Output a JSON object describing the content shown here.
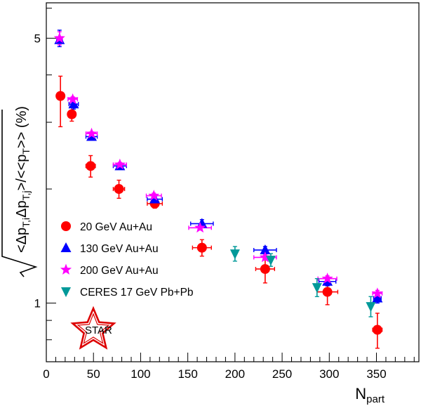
{
  "chart_data": {
    "type": "scatter",
    "xlabel": "N",
    "xlabel_sub": "part",
    "ylabel": "√<Δp_T,i Δp_T,j>/<<p_T>> (%)",
    "xlim": [
      0,
      395
    ],
    "ylim": [
      0.7,
      6.2
    ],
    "yscale": "log",
    "x_ticks": [
      0,
      50,
      100,
      150,
      200,
      250,
      300,
      350
    ],
    "y_tick_labels": [
      {
        "value": 1,
        "label": "1"
      },
      {
        "value": 5,
        "label": "5"
      }
    ],
    "legend_position": "left-middle",
    "series": [
      {
        "name": "20 GeV Au+Au",
        "color": "#ff0000",
        "marker": "circle",
        "points": [
          {
            "x": 15,
            "y": 3.52,
            "xerr": 0,
            "yerr_hi": 0.45,
            "yerr_lo": 0.6
          },
          {
            "x": 27,
            "y": 3.15,
            "xerr": 3,
            "yerr_hi": 0.13,
            "yerr_lo": 0.13
          },
          {
            "x": 47,
            "y": 2.3,
            "xerr": 5,
            "yerr_hi": 0.15,
            "yerr_lo": 0.15
          },
          {
            "x": 77,
            "y": 2.0,
            "xerr": 6,
            "yerr_hi": 0.11,
            "yerr_lo": 0.11
          },
          {
            "x": 115,
            "y": 1.83,
            "xerr": 8,
            "yerr_hi": 0.05,
            "yerr_lo": 0.05
          },
          {
            "x": 165,
            "y": 1.4,
            "xerr": 10,
            "yerr_hi": 0.07,
            "yerr_lo": 0.07
          },
          {
            "x": 232,
            "y": 1.23,
            "xerr": 10,
            "yerr_hi": 0.1,
            "yerr_lo": 0.1
          },
          {
            "x": 298,
            "y": 1.07,
            "xerr": 11,
            "yerr_hi": 0.08,
            "yerr_lo": 0.08
          },
          {
            "x": 351,
            "y": 0.85,
            "xerr": 5,
            "yerr_hi": 0.09,
            "yerr_lo": 0.09
          }
        ]
      },
      {
        "name": "130 GeV Au+Au",
        "color": "#0000ff",
        "marker": "triangle-up",
        "points": [
          {
            "x": 14,
            "y": 4.95,
            "xerr": 3,
            "yerr_hi": 0.3,
            "yerr_lo": 0.2
          },
          {
            "x": 29,
            "y": 3.35,
            "xerr": 5,
            "yerr_hi": 0.1,
            "yerr_lo": 0.1
          },
          {
            "x": 48,
            "y": 2.75,
            "xerr": 6,
            "yerr_hi": 0.05,
            "yerr_lo": 0.05
          },
          {
            "x": 78,
            "y": 2.3,
            "xerr": 7,
            "yerr_hi": 0.04,
            "yerr_lo": 0.04
          },
          {
            "x": 115,
            "y": 1.88,
            "xerr": 8,
            "yerr_hi": 0.03,
            "yerr_lo": 0.03
          },
          {
            "x": 165,
            "y": 1.62,
            "xerr": 12,
            "yerr_hi": 0.04,
            "yerr_lo": 0.04
          },
          {
            "x": 232,
            "y": 1.38,
            "xerr": 12,
            "yerr_hi": 0.03,
            "yerr_lo": 0.03
          },
          {
            "x": 298,
            "y": 1.14,
            "xerr": 9,
            "yerr_hi": 0.03,
            "yerr_lo": 0.03
          },
          {
            "x": 351,
            "y": 1.03,
            "xerr": 4,
            "yerr_hi": 0.03,
            "yerr_lo": 0.03
          }
        ]
      },
      {
        "name": "200 GeV Au+Au",
        "color": "#ff00ff",
        "marker": "star",
        "points": [
          {
            "x": 14,
            "y": 5.0,
            "xerr": 3,
            "yerr_hi": 0.2,
            "yerr_lo": 0.2
          },
          {
            "x": 28,
            "y": 3.45,
            "xerr": 5,
            "yerr_hi": 0.05,
            "yerr_lo": 0.05
          },
          {
            "x": 48,
            "y": 2.8,
            "xerr": 6,
            "yerr_hi": 0.03,
            "yerr_lo": 0.03
          },
          {
            "x": 78,
            "y": 2.32,
            "xerr": 7,
            "yerr_hi": 0.03,
            "yerr_lo": 0.03
          },
          {
            "x": 114,
            "y": 1.92,
            "xerr": 8,
            "yerr_hi": 0.03,
            "yerr_lo": 0.03
          },
          {
            "x": 163,
            "y": 1.58,
            "xerr": 12,
            "yerr_hi": 0.02,
            "yerr_lo": 0.02
          },
          {
            "x": 232,
            "y": 1.32,
            "xerr": 12,
            "yerr_hi": 0.02,
            "yerr_lo": 0.02
          },
          {
            "x": 298,
            "y": 1.16,
            "xerr": 10,
            "yerr_hi": 0.02,
            "yerr_lo": 0.02
          },
          {
            "x": 351,
            "y": 1.06,
            "xerr": 5,
            "yerr_hi": 0.02,
            "yerr_lo": 0.02
          }
        ]
      },
      {
        "name": "CERES 17 GeV Pb+Pb",
        "color": "#009999",
        "marker": "triangle-down",
        "points": [
          {
            "x": 200,
            "y": 1.35,
            "xerr": 0,
            "yerr_hi": 0.06,
            "yerr_lo": 0.06
          },
          {
            "x": 238,
            "y": 1.3,
            "xerr": 0,
            "yerr_hi": 0.05,
            "yerr_lo": 0.05
          },
          {
            "x": 287,
            "y": 1.1,
            "xerr": 0,
            "yerr_hi": 0.06,
            "yerr_lo": 0.06
          },
          {
            "x": 344,
            "y": 0.98,
            "xerr": 0,
            "yerr_hi": 0.06,
            "yerr_lo": 0.06
          }
        ]
      }
    ],
    "logo": {
      "text": "STAR",
      "color": "#dd0000"
    }
  }
}
